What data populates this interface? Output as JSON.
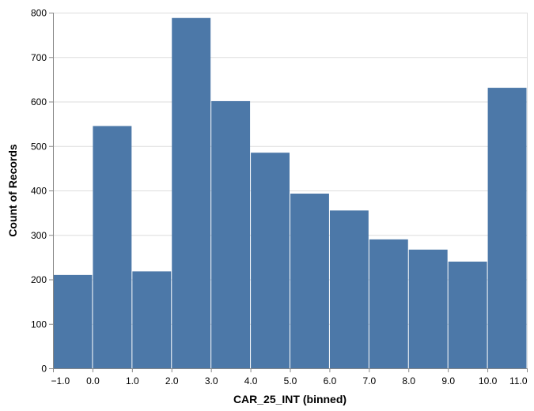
{
  "chart_data": {
    "type": "bar",
    "title": "",
    "xlabel": "CAR_25_INT (binned)",
    "ylabel": "Count of Records",
    "bins": [
      {
        "start": -1,
        "end": 0,
        "value": 210
      },
      {
        "start": 0,
        "end": 1,
        "value": 545
      },
      {
        "start": 1,
        "end": 2,
        "value": 218
      },
      {
        "start": 2,
        "end": 3,
        "value": 788
      },
      {
        "start": 3,
        "end": 4,
        "value": 601
      },
      {
        "start": 4,
        "end": 5,
        "value": 485
      },
      {
        "start": 5,
        "end": 6,
        "value": 393
      },
      {
        "start": 6,
        "end": 7,
        "value": 355
      },
      {
        "start": 7,
        "end": 8,
        "value": 290
      },
      {
        "start": 8,
        "end": 9,
        "value": 267
      },
      {
        "start": 9,
        "end": 10,
        "value": 240
      },
      {
        "start": 10,
        "end": 11,
        "value": 631
      }
    ],
    "xlim": [
      -1,
      11
    ],
    "ylim": [
      0,
      800
    ],
    "x_ticks": [
      {
        "value": -1,
        "label": "−1.0"
      },
      {
        "value": 0,
        "label": "0.0"
      },
      {
        "value": 1,
        "label": "1.0"
      },
      {
        "value": 2,
        "label": "2.0"
      },
      {
        "value": 3,
        "label": "3.0"
      },
      {
        "value": 4,
        "label": "4.0"
      },
      {
        "value": 5,
        "label": "5.0"
      },
      {
        "value": 6,
        "label": "6.0"
      },
      {
        "value": 7,
        "label": "7.0"
      },
      {
        "value": 8,
        "label": "8.0"
      },
      {
        "value": 9,
        "label": "9.0"
      },
      {
        "value": 10,
        "label": "10.0"
      },
      {
        "value": 11,
        "label": "11.0"
      }
    ],
    "y_ticks": [
      {
        "value": 0,
        "label": "0"
      },
      {
        "value": 100,
        "label": "100"
      },
      {
        "value": 200,
        "label": "200"
      },
      {
        "value": 300,
        "label": "300"
      },
      {
        "value": 400,
        "label": "400"
      },
      {
        "value": 500,
        "label": "500"
      },
      {
        "value": 600,
        "label": "600"
      },
      {
        "value": 700,
        "label": "700"
      },
      {
        "value": 800,
        "label": "800"
      }
    ],
    "grid": true,
    "legend": "none",
    "colors": {
      "bar": "#4c78a8",
      "bar_stroke": "#ffffff",
      "grid": "#dddddd",
      "axis": "#888888",
      "text": "#000000"
    }
  }
}
